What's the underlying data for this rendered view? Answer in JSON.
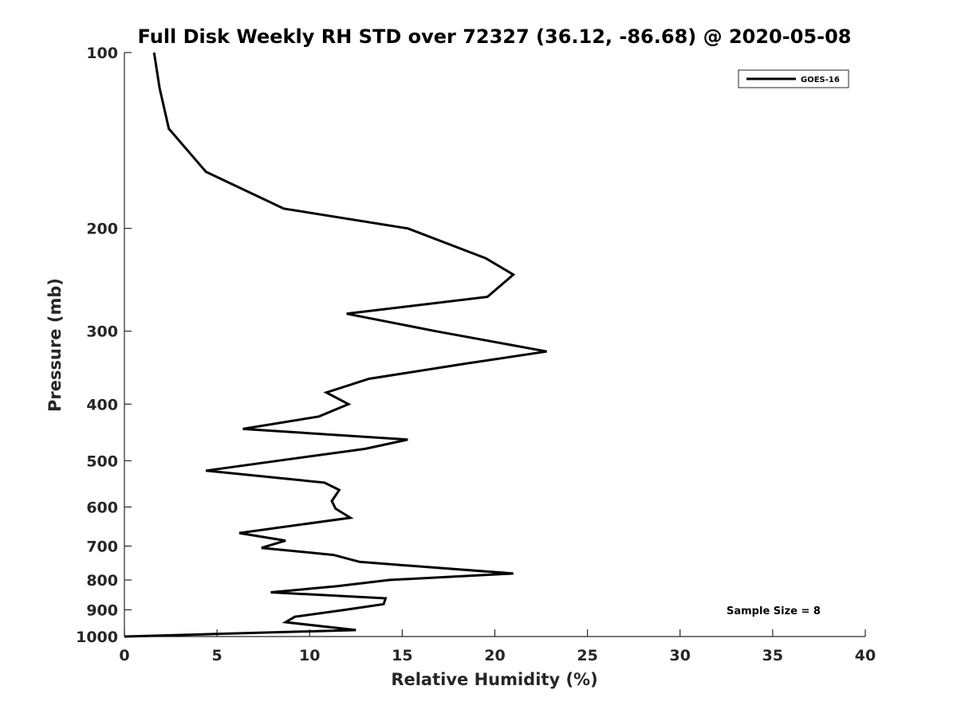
{
  "chart_data": {
    "type": "line",
    "title": "Full Disk Weekly RH STD over 72327 (36.12, -86.68) @ 2020-05-08",
    "xlabel": "Relative Humidity (%)",
    "ylabel": "Pressure (mb)",
    "xlim": [
      0,
      40
    ],
    "ylim": [
      100,
      1000
    ],
    "yscale": "log",
    "reverse_y": true,
    "xticks": [
      "0",
      "5",
      "10",
      "15",
      "20",
      "25",
      "30",
      "35",
      "40"
    ],
    "yticks": [
      "100",
      "200",
      "300",
      "400",
      "500",
      "600",
      "700",
      "800",
      "900",
      "1000"
    ],
    "grid": false,
    "legend": {
      "position": "top-right",
      "entries": [
        "GOES-16"
      ]
    },
    "annotation": "Sample Size = 8",
    "series": [
      {
        "name": "GOES-16",
        "color": "#000000",
        "points": [
          [
            1.6,
            100
          ],
          [
            1.9,
            115
          ],
          [
            2.4,
            135
          ],
          [
            4.4,
            160
          ],
          [
            8.6,
            185
          ],
          [
            15.3,
            200
          ],
          [
            19.5,
            225
          ],
          [
            21.0,
            240
          ],
          [
            19.6,
            262
          ],
          [
            12.0,
            280
          ],
          [
            16.8,
            300
          ],
          [
            22.8,
            325
          ],
          [
            18.4,
            341
          ],
          [
            13.2,
            362
          ],
          [
            10.9,
            382
          ],
          [
            12.1,
            400
          ],
          [
            10.5,
            420
          ],
          [
            6.4,
            441
          ],
          [
            15.3,
            460
          ],
          [
            13.0,
            477
          ],
          [
            8.3,
            500
          ],
          [
            4.4,
            520
          ],
          [
            10.8,
            545
          ],
          [
            11.6,
            561
          ],
          [
            11.2,
            586
          ],
          [
            11.4,
            604
          ],
          [
            12.2,
            626
          ],
          [
            6.2,
            665
          ],
          [
            8.7,
            685
          ],
          [
            7.4,
            705
          ],
          [
            11.3,
            725
          ],
          [
            12.7,
            745
          ],
          [
            21.0,
            780
          ],
          [
            14.3,
            800
          ],
          [
            11.5,
            820
          ],
          [
            7.9,
            840
          ],
          [
            14.1,
            860
          ],
          [
            14.0,
            880
          ],
          [
            11.9,
            900
          ],
          [
            9.2,
            925
          ],
          [
            8.7,
            945
          ],
          [
            12.5,
            975
          ],
          [
            4.9,
            990
          ],
          [
            0.0,
            1000
          ]
        ]
      }
    ]
  }
}
